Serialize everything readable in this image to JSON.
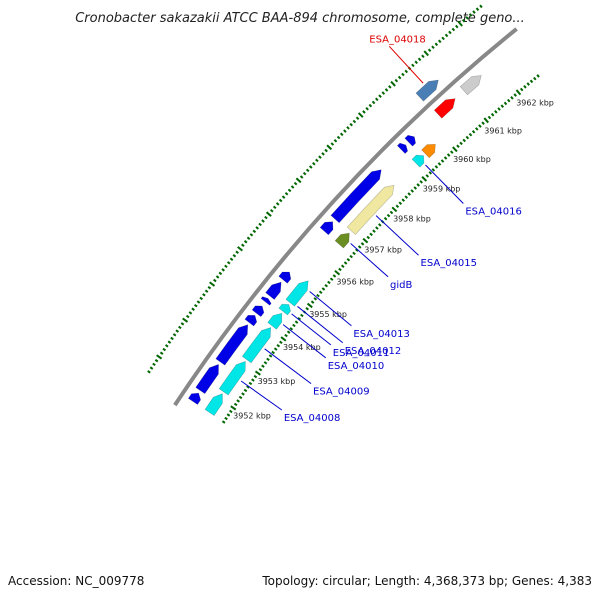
{
  "title": "Cronobacter sakazakii ATCC BAA-894 chromosome, complete geno...",
  "footer": {
    "accession": "Accession: NC_009778",
    "summary": "Topology: circular; Length: 4,368,373 bp; Genes: 4,383"
  },
  "colors": {
    "backbone": "#888888",
    "forward_gene": "#0000e6",
    "reverse_gene": "#00e6e6",
    "highlight_gene": "#ff0000",
    "highlight_label": "#dd0000",
    "gene_label": "#0000cc",
    "tick": "#006600"
  },
  "map": {
    "start_kbp": 3951.6,
    "end_kbp": 3962.6,
    "ticks": [
      "3952 kbp",
      "3953 kbp",
      "3954 kbp",
      "3955 kbp",
      "3956 kbp",
      "3957 kbp",
      "3958 kbp",
      "3959 kbp",
      "3960 kbp",
      "3961 kbp",
      "3962 kbp"
    ]
  },
  "features": [
    {
      "lane": "top",
      "start": 3951.6,
      "end": 3951.83,
      "color": "#0000e6"
    },
    {
      "lane": "top",
      "start": 3951.9,
      "end": 3952.63,
      "color": "#0000e6"
    },
    {
      "lane": "top",
      "start": 3952.7,
      "end": 3953.76,
      "color": "#0000e6"
    },
    {
      "lane": "top",
      "start": 3953.82,
      "end": 3954.03,
      "color": "#0000e6"
    },
    {
      "lane": "top",
      "start": 3954.09,
      "end": 3954.3,
      "color": "#0000e6"
    },
    {
      "lane": "top",
      "start": 3954.42,
      "end": 3954.52,
      "color": "#0000e6"
    },
    {
      "lane": "top",
      "start": 3954.59,
      "end": 3955.0,
      "color": "#0000e6"
    },
    {
      "lane": "top",
      "start": 3955.07,
      "end": 3955.3,
      "color": "#0000e6"
    },
    {
      "lane": "top",
      "start": 3956.53,
      "end": 3956.82,
      "color": "#0000e6"
    },
    {
      "lane": "top",
      "start": 3956.9,
      "end": 3958.45,
      "color": "#0000e6"
    },
    {
      "lane": "top",
      "start": 3959.1,
      "end": 3959.25,
      "color": "#0000e6"
    },
    {
      "lane": "top",
      "start": 3959.34,
      "end": 3959.52,
      "color": "#0000e6"
    },
    {
      "lane": "outer",
      "start": 3960.23,
      "end": 3960.8,
      "color": "#4a7fb5"
    },
    {
      "lane": "top",
      "start": 3960.27,
      "end": 3960.8,
      "color": "#ff0000"
    },
    {
      "lane": "top",
      "start": 3961.07,
      "end": 3961.6,
      "color": "#cccccc"
    },
    {
      "lane": "bottom",
      "start": 3951.6,
      "end": 3952.13,
      "color": "#00e6e6"
    },
    {
      "lane": "bottom",
      "start": 3952.18,
      "end": 3953.05,
      "color": "#00e6e6"
    },
    {
      "lane": "bottom",
      "start": 3953.1,
      "end": 3954.03,
      "color": "#00e6e6"
    },
    {
      "lane": "bottom",
      "start": 3954.08,
      "end": 3954.45,
      "color": "#00e6e6"
    },
    {
      "lane": "bottom",
      "start": 3954.5,
      "end": 3954.71,
      "color": "#00e6e6"
    },
    {
      "lane": "bottom",
      "start": 3954.76,
      "end": 3955.42,
      "color": "#00e6e6"
    },
    {
      "lane": "bottom",
      "start": 3956.53,
      "end": 3956.88,
      "color": "#6b8e23"
    },
    {
      "lane": "bottom",
      "start": 3956.95,
      "end": 3958.4,
      "color": "#f0e8a0"
    },
    {
      "lane": "bottom",
      "start": 3959.12,
      "end": 3959.37,
      "color": "#00e6e6"
    },
    {
      "lane": "bottom",
      "start": 3959.43,
      "end": 3959.75,
      "color": "#ff8c00"
    }
  ],
  "labels": [
    {
      "text": "ESA_04018",
      "anchor": 3960.5,
      "lane": "outer",
      "color": "#dd0000"
    },
    {
      "text": "ESA_04016",
      "anchor": 3959.25,
      "lane": "bottom",
      "color": "#0000cc"
    },
    {
      "text": "ESA_04015",
      "anchor": 3957.6,
      "lane": "bottom",
      "color": "#0000cc"
    },
    {
      "text": "gidB",
      "anchor": 3956.72,
      "lane": "bottom",
      "color": "#0000cc"
    },
    {
      "text": "ESA_04013",
      "anchor": 3955.25,
      "lane": "bottom",
      "color": "#0000cc"
    },
    {
      "text": "ESA_04012",
      "anchor": 3954.8,
      "lane": "bottom",
      "color": "#0000cc"
    },
    {
      "text": "ESA_04011",
      "anchor": 3954.58,
      "lane": "bottom",
      "color": "#0000cc"
    },
    {
      "text": "ESA_04010",
      "anchor": 3954.26,
      "lane": "bottom",
      "color": "#0000cc"
    },
    {
      "text": "ESA_04009",
      "anchor": 3953.55,
      "lane": "bottom",
      "color": "#0000cc"
    },
    {
      "text": "ESA_04008",
      "anchor": 3952.62,
      "lane": "bottom",
      "color": "#0000cc"
    }
  ]
}
